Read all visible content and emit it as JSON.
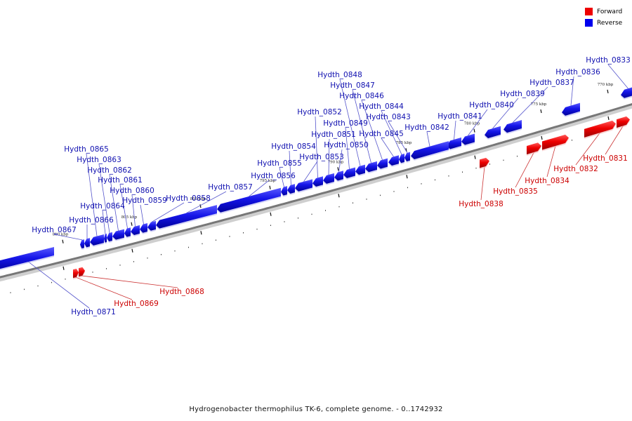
{
  "legend": {
    "items": [
      {
        "label": "Forward",
        "color": "#ee0000"
      },
      {
        "label": "Reverse",
        "color": "#0000ee"
      }
    ]
  },
  "caption": "Hydrogenobacter thermophilus TK-6, complete genome. - 0..1742932",
  "colors": {
    "forward": "#ee0000",
    "forward_label": "#cc0000",
    "reverse": "#1515e8",
    "reverse_label": "#1010b0",
    "backbone": "#777777",
    "leader": "#5555cc"
  },
  "ticks": [
    {
      "kbp": 770,
      "label": "770 kbp"
    },
    {
      "kbp": 775,
      "label": "775 kbp"
    },
    {
      "kbp": 780,
      "label": "780 kbp"
    },
    {
      "kbp": 785,
      "label": "785 kbp"
    },
    {
      "kbp": 790,
      "label": "790 kbp"
    },
    {
      "kbp": 795,
      "label": "795 kbp"
    },
    {
      "kbp": 800,
      "label": "800 kbp"
    },
    {
      "kbp": 805,
      "label": "805 kbp"
    },
    {
      "kbp": 810,
      "label": "810 kbp"
    }
  ],
  "genes": [
    {
      "name": "Hydth_0831",
      "strand": "forward"
    },
    {
      "name": "Hydth_0832",
      "strand": "forward"
    },
    {
      "name": "Hydth_0833",
      "strand": "reverse"
    },
    {
      "name": "Hydth_0834",
      "strand": "forward"
    },
    {
      "name": "Hydth_0835",
      "strand": "forward"
    },
    {
      "name": "Hydth_0836",
      "strand": "reverse"
    },
    {
      "name": "Hydth_0837",
      "strand": "reverse"
    },
    {
      "name": "Hydth_0838",
      "strand": "forward"
    },
    {
      "name": "Hydth_0839",
      "strand": "reverse"
    },
    {
      "name": "Hydth_0840",
      "strand": "reverse"
    },
    {
      "name": "Hydth_0841",
      "strand": "reverse"
    },
    {
      "name": "Hydth_0842",
      "strand": "reverse"
    },
    {
      "name": "Hydth_0843",
      "strand": "reverse"
    },
    {
      "name": "Hydth_0844",
      "strand": "reverse"
    },
    {
      "name": "Hydth_0845",
      "strand": "reverse"
    },
    {
      "name": "Hydth_0846",
      "strand": "reverse"
    },
    {
      "name": "Hydth_0847",
      "strand": "reverse"
    },
    {
      "name": "Hydth_0848",
      "strand": "reverse"
    },
    {
      "name": "Hydth_0849",
      "strand": "reverse"
    },
    {
      "name": "Hydth_0850",
      "strand": "reverse"
    },
    {
      "name": "Hydth_0851",
      "strand": "reverse"
    },
    {
      "name": "Hydth_0852",
      "strand": "reverse"
    },
    {
      "name": "Hydth_0853",
      "strand": "reverse"
    },
    {
      "name": "Hydth_0854",
      "strand": "reverse"
    },
    {
      "name": "Hydth_0855",
      "strand": "reverse"
    },
    {
      "name": "Hydth_0856",
      "strand": "reverse"
    },
    {
      "name": "Hydth_0857",
      "strand": "reverse"
    },
    {
      "name": "Hydth_0858",
      "strand": "reverse"
    },
    {
      "name": "Hydth_0859",
      "strand": "reverse"
    },
    {
      "name": "Hydth_0860",
      "strand": "reverse"
    },
    {
      "name": "Hydth_0861",
      "strand": "reverse"
    },
    {
      "name": "Hydth_0862",
      "strand": "reverse"
    },
    {
      "name": "Hydth_0863",
      "strand": "reverse"
    },
    {
      "name": "Hydth_0864",
      "strand": "reverse"
    },
    {
      "name": "Hydth_0865",
      "strand": "reverse"
    },
    {
      "name": "Hydth_0866",
      "strand": "reverse"
    },
    {
      "name": "Hydth_0867",
      "strand": "reverse"
    },
    {
      "name": "Hydth_0868",
      "strand": "forward"
    },
    {
      "name": "Hydth_0869",
      "strand": "forward"
    },
    {
      "name": "Hydth_0871",
      "strand": "reverse"
    }
  ]
}
